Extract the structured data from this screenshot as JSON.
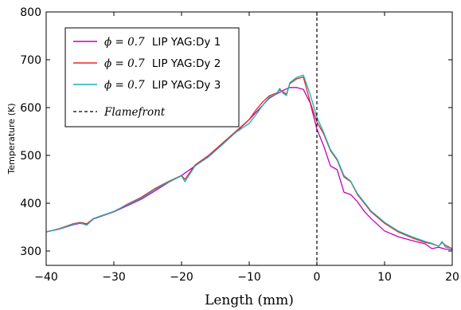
{
  "chart_data": {
    "type": "line",
    "xlabel": "Length (mm)",
    "ylabel": "Temperature (K)",
    "xlim": [
      -40,
      20
    ],
    "ylim": [
      270,
      800
    ],
    "xticks": [
      -40,
      -30,
      -20,
      -10,
      0,
      10,
      20
    ],
    "yticks": [
      300,
      400,
      500,
      600,
      700,
      800
    ],
    "xtick_labels": [
      "−40",
      "−30",
      "−20",
      "−10",
      "0",
      "10",
      "20"
    ],
    "ytick_labels": [
      "300",
      "400",
      "500",
      "600",
      "700",
      "800"
    ],
    "grid": false,
    "legend_position": "top-left",
    "flamefront_x": 0,
    "flamefront_label": "Flamefront",
    "series": [
      {
        "name": "ϕ = 0.7 LIP YAG:Dy 1",
        "name_math": "ϕ = 0.7",
        "name_text": "LIP YAG:Dy 1",
        "color": "#bf00bf",
        "x": [
          -40,
          -38,
          -36,
          -35,
          -34,
          -33,
          -30,
          -28,
          -26,
          -24,
          -22,
          -20,
          -18,
          -16,
          -14,
          -12,
          -10,
          -9,
          -8,
          -7,
          -6,
          -5,
          -4,
          -3,
          -2,
          -1,
          0,
          1,
          2,
          3,
          4,
          5,
          6,
          7,
          8,
          10,
          12,
          14,
          16,
          17,
          18,
          19,
          20
        ],
        "values": [
          340,
          346,
          355,
          358,
          355,
          367,
          382,
          395,
          408,
          425,
          443,
          458,
          478,
          498,
          523,
          548,
          575,
          590,
          605,
          620,
          628,
          636,
          642,
          642,
          638,
          610,
          555,
          520,
          478,
          470,
          423,
          418,
          403,
          383,
          368,
          342,
          330,
          322,
          315,
          305,
          308,
          304,
          303
        ]
      },
      {
        "name": "ϕ = 0.7 LIP YAG:Dy 2",
        "name_math": "ϕ = 0.7",
        "name_text": "LIP YAG:Dy 2",
        "color": "#e8262a",
        "x": [
          -40,
          -38,
          -36,
          -35,
          -34,
          -33,
          -30,
          -28,
          -26,
          -24,
          -22,
          -20,
          -19.5,
          -18,
          -16,
          -14,
          -12,
          -10,
          -9,
          -8,
          -7,
          -6,
          -5.5,
          -5,
          -4.5,
          -4,
          -3,
          -2,
          -1,
          0,
          1,
          2,
          3,
          4,
          5,
          6,
          7,
          8,
          10,
          12,
          14,
          16,
          17,
          18,
          18.5,
          19,
          20
        ],
        "values": [
          340,
          347,
          357,
          360,
          357,
          368,
          382,
          398,
          412,
          430,
          445,
          458,
          450,
          480,
          500,
          525,
          550,
          575,
          595,
          612,
          625,
          630,
          637,
          633,
          628,
          650,
          660,
          664,
          612,
          570,
          545,
          510,
          490,
          455,
          445,
          418,
          400,
          382,
          358,
          340,
          328,
          318,
          315,
          310,
          318,
          312,
          305
        ]
      },
      {
        "name": "ϕ = 0.7 LIP YAG:Dy 3",
        "name_math": "ϕ = 0.7",
        "name_text": "LIP YAG:Dy 3",
        "color": "#16b2b5",
        "x": [
          -40,
          -38,
          -36,
          -35,
          -34,
          -33,
          -30,
          -28,
          -26,
          -24,
          -22,
          -20,
          -19.5,
          -18,
          -16,
          -14,
          -12,
          -10,
          -9,
          -8,
          -7,
          -6,
          -5.5,
          -5,
          -4.5,
          -4,
          -3,
          -2,
          -1,
          0,
          1,
          2,
          3,
          4,
          5,
          6,
          7,
          8,
          10,
          12,
          14,
          16,
          17,
          18,
          18.5,
          19,
          20
        ],
        "values": [
          340,
          346,
          356,
          359,
          354,
          368,
          383,
          397,
          410,
          428,
          444,
          457,
          445,
          478,
          497,
          522,
          548,
          567,
          585,
          605,
          622,
          628,
          640,
          630,
          625,
          652,
          663,
          668,
          628,
          580,
          548,
          512,
          492,
          458,
          446,
          420,
          402,
          384,
          360,
          342,
          330,
          320,
          316,
          310,
          320,
          308,
          306
        ]
      }
    ]
  }
}
